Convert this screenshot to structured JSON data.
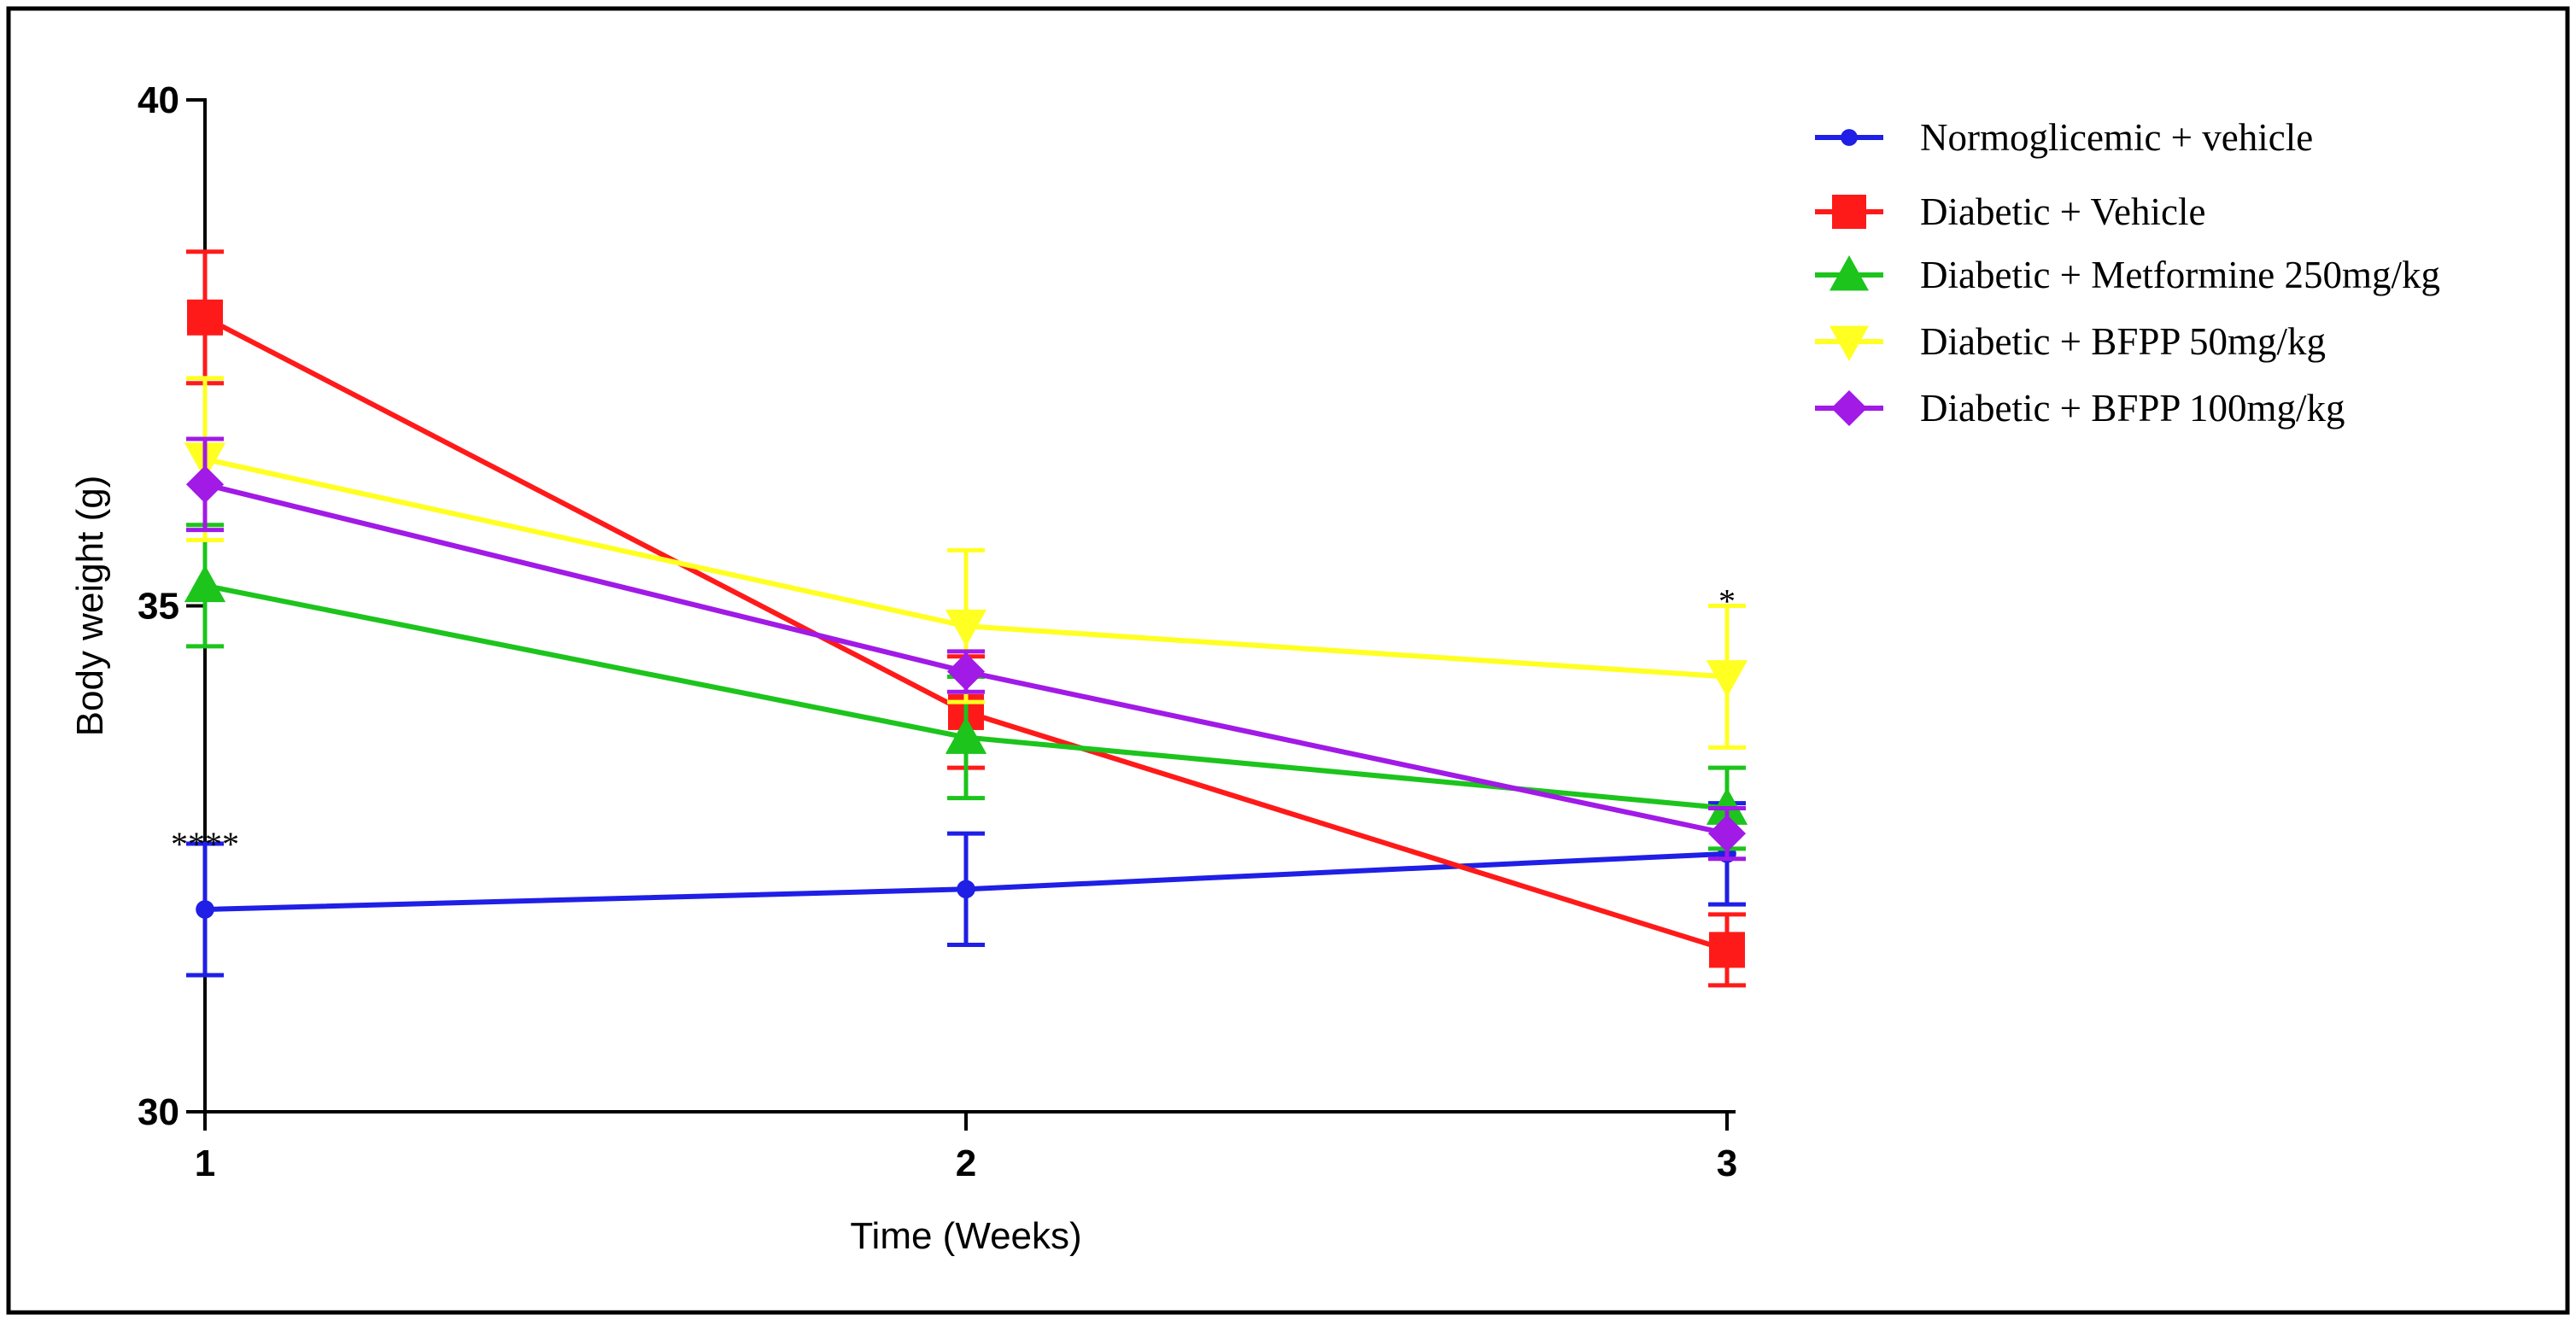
{
  "chart_data": {
    "type": "line",
    "xlabel": "Time (Weeks)",
    "ylabel": "Body weight (g)",
    "x": [
      1,
      2,
      3
    ],
    "x_ticks": [
      "1",
      "2",
      "3"
    ],
    "ylim": [
      30,
      40
    ],
    "y_ticks": [
      "30",
      "35",
      "40"
    ],
    "y_tick_values": [
      30,
      35,
      40
    ],
    "grid": false,
    "legend_position": "top-right",
    "series": [
      {
        "name": "Normoglicemic + vehicle",
        "values": [
          32.0,
          32.2,
          32.55
        ],
        "errors": [
          0.65,
          0.55,
          0.5
        ],
        "color": "#1f1fe6",
        "marker": "circle"
      },
      {
        "name": "Diabetic + Vehicle",
        "values": [
          37.85,
          33.95,
          31.6
        ],
        "errors": [
          0.65,
          0.55,
          0.35
        ],
        "color": "#ff1a1a",
        "marker": "square"
      },
      {
        "name": "Diabetic + Metformine 250mg/kg",
        "values": [
          35.2,
          33.7,
          33.0
        ],
        "errors": [
          0.6,
          0.6,
          0.4
        ],
        "color": "#1cc41c",
        "marker": "triangle-up"
      },
      {
        "name": "Diabetic + BFPP 50mg/kg",
        "values": [
          36.45,
          34.8,
          34.3
        ],
        "errors": [
          0.8,
          0.75,
          0.7
        ],
        "color": "#ffff22",
        "marker": "triangle-down"
      },
      {
        "name": "Diabetic + BFPP 100mg/kg",
        "values": [
          36.2,
          34.35,
          32.75
        ],
        "errors": [
          0.45,
          0.2,
          0.25
        ],
        "color": "#a11ae6",
        "marker": "diamond"
      }
    ],
    "annotations": [
      {
        "text": "****",
        "x": 1,
        "y": 32.65
      },
      {
        "text": "*",
        "x": 3,
        "y": 35.05
      }
    ]
  }
}
